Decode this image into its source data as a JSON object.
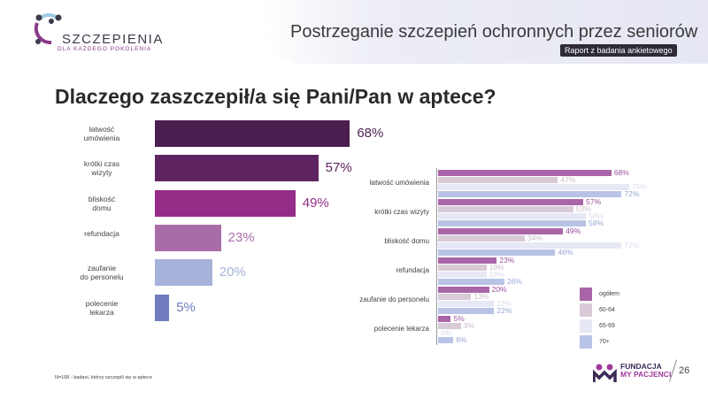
{
  "header": {
    "title": "Postrzeganie szczepień ochronnych przez seniorów",
    "badge": "Raport z badania ankietowego"
  },
  "logo": {
    "line1": "SZCZEPIENIA",
    "line2": "DLA KAŻDEGO POKOLENIA"
  },
  "question": "Dlaczego zaszczepił/a się Pani/Pan w aptece?",
  "chart_data": [
    {
      "type": "bar",
      "orientation": "horizontal",
      "categories": [
        "łatwość umówienia",
        "krótki czas wizyty",
        "bliskość domu",
        "refundacja",
        "zaufanie do personelu",
        "polecenie lekarza"
      ],
      "values": [
        68,
        57,
        49,
        23,
        20,
        5
      ],
      "labels": [
        "68%",
        "57%",
        "49%",
        "23%",
        "20%",
        "5%"
      ],
      "colors": [
        "#4b1e50",
        "#5e2461",
        "#952c87",
        "#a86ca9",
        "#a7b2da",
        "#6f7cbf"
      ]
    },
    {
      "type": "bar",
      "orientation": "horizontal",
      "categories": [
        "łatwość umówienia",
        "krótki czas wizyty",
        "bliskość domu",
        "refundacja",
        "zaufanie do personelu",
        "polecenie lekarza"
      ],
      "series": [
        {
          "name": "ogółem",
          "color": "#a866a8",
          "values": [
            68,
            57,
            49,
            23,
            20,
            5
          ]
        },
        {
          "name": "60-64",
          "color": "#d9cad7",
          "values": [
            47,
            53,
            34,
            19,
            13,
            9
          ]
        },
        {
          "name": "65-69",
          "color": "#e7e8f5",
          "values": [
            75,
            58,
            72,
            19,
            22,
            0
          ]
        },
        {
          "name": "70+",
          "color": "#b8c3e6",
          "values": [
            72,
            58,
            46,
            26,
            22,
            6
          ]
        }
      ],
      "legend": "right-bottom"
    }
  ],
  "footnote": "N=168 - badani, którzy szczepili się w aptece",
  "footer": {
    "org1": "FUNDACJA",
    "org2": "MY PACJENCI",
    "page": "26"
  }
}
